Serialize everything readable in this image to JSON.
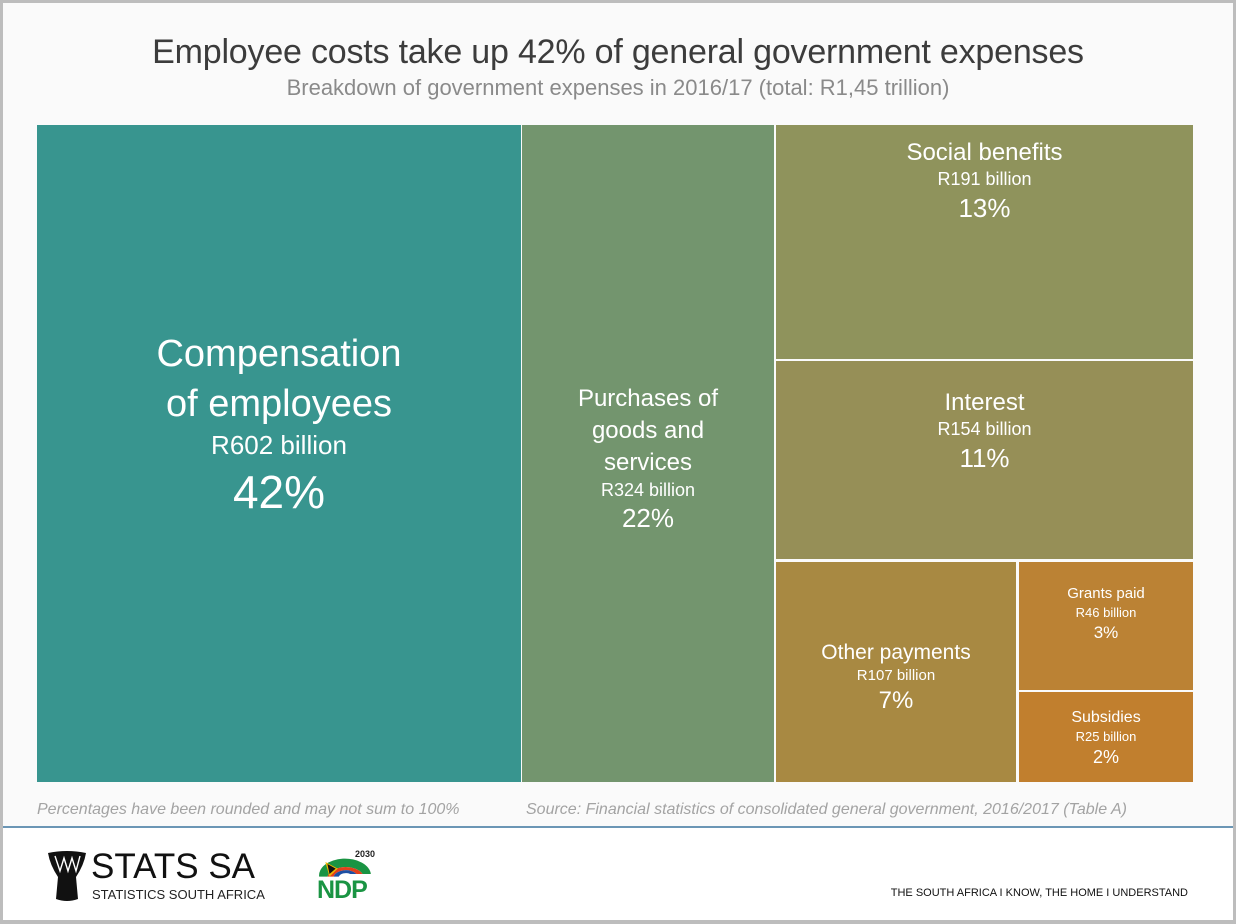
{
  "chart_data": {
    "type": "treemap",
    "title": "Employee costs take up 42% of general government expenses",
    "subtitle": "Breakdown of government expenses in 2016/17 (total: R1,45 trillion)",
    "unit": "R billion",
    "total_label": "R1,45 trillion",
    "items": [
      {
        "name": "Compensation of employees",
        "label_lines": [
          "Compensation",
          "of employees"
        ],
        "value": 602,
        "value_label": "R602 billion",
        "percent": 42,
        "percent_label": "42%",
        "color": "#38958f"
      },
      {
        "name": "Purchases of goods and services",
        "label_lines": [
          "Purchases of",
          "goods and",
          "services"
        ],
        "value": 324,
        "value_label": "R324 billion",
        "percent": 22,
        "percent_label": "22%",
        "color": "#73956e"
      },
      {
        "name": "Social benefits",
        "label_lines": [
          "Social benefits"
        ],
        "value": 191,
        "value_label": "R191 billion",
        "percent": 13,
        "percent_label": "13%",
        "color": "#8f935c"
      },
      {
        "name": "Interest",
        "label_lines": [
          "Interest"
        ],
        "value": 154,
        "value_label": "R154 billion",
        "percent": 11,
        "percent_label": "11%",
        "color": "#968f57"
      },
      {
        "name": "Other payments",
        "label_lines": [
          "Other payments"
        ],
        "value": 107,
        "value_label": "R107 billion",
        "percent": 7,
        "percent_label": "7%",
        "color": "#a88942"
      },
      {
        "name": "Grants paid",
        "label_lines": [
          "Grants paid"
        ],
        "value": 46,
        "value_label": "R46 billion",
        "percent": 3,
        "percent_label": "3%",
        "color": "#bb8234"
      },
      {
        "name": "Subsidies",
        "label_lines": [
          "Subsidies"
        ],
        "value": 25,
        "value_label": "R25 billion",
        "percent": 2,
        "percent_label": "2%",
        "color": "#c17f2e"
      }
    ]
  },
  "footnotes": {
    "rounding": "Percentages have been rounded and may not sum to 100%",
    "source": "Source: Financial statistics of consolidated general government, 2016/2017 (Table A)"
  },
  "branding": {
    "stats_sa": "STATS SA",
    "stats_sa_sub": "STATISTICS SOUTH AFRICA",
    "ndp": "NDP",
    "ndp_year": "2030",
    "tagline": "THE SOUTH AFRICA I KNOW, THE HOME I UNDERSTAND"
  }
}
